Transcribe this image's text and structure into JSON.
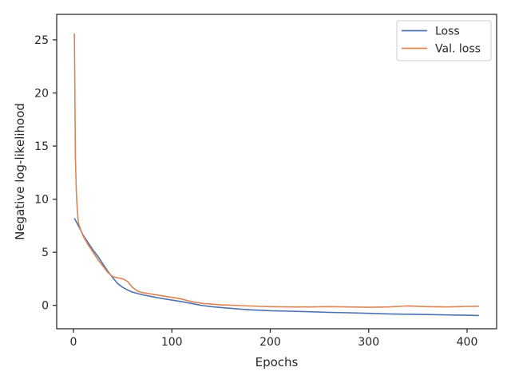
{
  "chart_data": {
    "type": "line",
    "title": "",
    "xlabel": "Epochs",
    "ylabel": "Negative log-likelihood",
    "xlim": [
      -17,
      430
    ],
    "ylim": [
      -2.2,
      27.4
    ],
    "xticks": [
      0,
      100,
      200,
      300,
      400
    ],
    "yticks": [
      0,
      5,
      10,
      15,
      20,
      25
    ],
    "grid": false,
    "legend_position": "top-right",
    "series": [
      {
        "name": "Loss",
        "color": "#4c72b0",
        "x": [
          1,
          5,
          10,
          15,
          20,
          25,
          30,
          35,
          40,
          45,
          50,
          55,
          60,
          70,
          80,
          90,
          100,
          110,
          120,
          130,
          140,
          150,
          160,
          170,
          180,
          190,
          200,
          220,
          240,
          260,
          280,
          300,
          320,
          340,
          360,
          380,
          400,
          412
        ],
        "y": [
          8.2,
          7.5,
          6.6,
          5.9,
          5.2,
          4.6,
          3.9,
          3.2,
          2.6,
          2.05,
          1.7,
          1.45,
          1.25,
          1.0,
          0.82,
          0.65,
          0.5,
          0.35,
          0.18,
          0.0,
          -0.12,
          -0.2,
          -0.28,
          -0.35,
          -0.42,
          -0.46,
          -0.5,
          -0.55,
          -0.6,
          -0.66,
          -0.7,
          -0.75,
          -0.8,
          -0.83,
          -0.86,
          -0.9,
          -0.93,
          -0.95
        ]
      },
      {
        "name": "Val. loss",
        "color": "#dd8452",
        "x": [
          1,
          2,
          3,
          4,
          5,
          7,
          10,
          15,
          20,
          25,
          30,
          35,
          40,
          45,
          50,
          55,
          60,
          65,
          70,
          80,
          90,
          100,
          110,
          120,
          130,
          140,
          150,
          160,
          170,
          180,
          190,
          200,
          220,
          240,
          260,
          280,
          300,
          320,
          340,
          360,
          380,
          400,
          412
        ],
        "y": [
          25.6,
          14.0,
          10.5,
          8.9,
          7.8,
          7.2,
          6.5,
          5.7,
          5.0,
          4.3,
          3.7,
          3.1,
          2.7,
          2.6,
          2.5,
          2.25,
          1.7,
          1.35,
          1.2,
          1.05,
          0.9,
          0.75,
          0.6,
          0.35,
          0.2,
          0.12,
          0.05,
          0.02,
          -0.02,
          -0.06,
          -0.1,
          -0.12,
          -0.15,
          -0.15,
          -0.12,
          -0.15,
          -0.18,
          -0.15,
          -0.05,
          -0.12,
          -0.15,
          -0.1,
          -0.08
        ]
      }
    ]
  }
}
